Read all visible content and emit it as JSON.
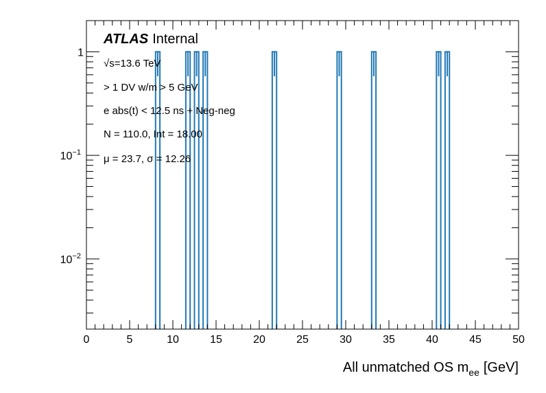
{
  "chart_data": {
    "type": "histogram",
    "xlabel": "All unmatched OS m",
    "xlabel_sub": "ee",
    "xlabel_unit": "[GeV]",
    "ylabel": "",
    "xlim": [
      0,
      50
    ],
    "ylim": [
      0.0021,
      2.0
    ],
    "y_scale": "log",
    "grid": false,
    "x_ticks": [
      0,
      5,
      10,
      15,
      20,
      25,
      30,
      35,
      40,
      45,
      50
    ],
    "x_tick_labels": [
      "0",
      "5",
      "10",
      "15",
      "20",
      "25",
      "30",
      "35",
      "40",
      "45",
      "50"
    ],
    "y_ticks": [
      {
        "value": 1,
        "label": "1"
      },
      {
        "value": 0.1,
        "label": "10",
        "sup": "−1"
      },
      {
        "value": 0.01,
        "label": "10",
        "sup": "−2"
      }
    ],
    "bin_width": 0.5,
    "bins": [
      {
        "x_low": 8.0,
        "x_high": 8.5,
        "y": 1
      },
      {
        "x_low": 11.5,
        "x_high": 12.0,
        "y": 1
      },
      {
        "x_low": 12.5,
        "x_high": 13.0,
        "y": 1
      },
      {
        "x_low": 13.5,
        "x_high": 14.0,
        "y": 1
      },
      {
        "x_low": 21.5,
        "x_high": 22.0,
        "y": 1
      },
      {
        "x_low": 29.0,
        "x_high": 29.5,
        "y": 1
      },
      {
        "x_low": 33.0,
        "x_high": 33.5,
        "y": 1
      },
      {
        "x_low": 40.5,
        "x_high": 41.0,
        "y": 1
      },
      {
        "x_low": 41.5,
        "x_high": 42.0,
        "y": 1
      }
    ],
    "error_low": 0.58,
    "series_color": "#1f77b4",
    "annotations": {
      "atlas": "ATLAS",
      "internal": "Internal",
      "sqrt": "√s=13.6 TeV",
      "selection": "> 1 DV w/m > 5 GeV",
      "cut": "e abs(t) < 12.5 ns + Neg-neg",
      "stats": "N = 110.0, Int  = 18.00",
      "mu": "μ = 23.7, σ = 12.26"
    }
  }
}
